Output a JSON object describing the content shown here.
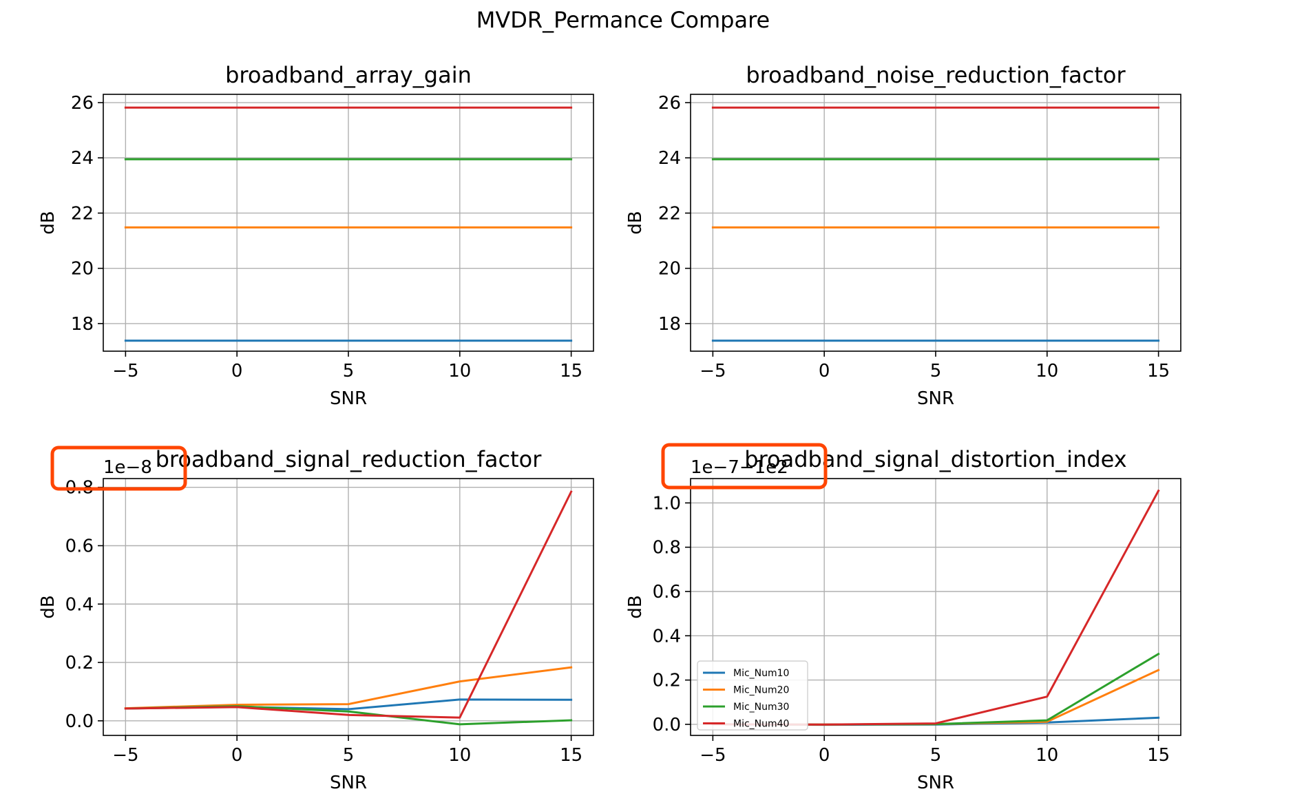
{
  "figure": {
    "suptitle": "MVDR_Permance Compare"
  },
  "colors": {
    "Mic_Num10": "#1f77b4",
    "Mic_Num20": "#ff7f0e",
    "Mic_Num30": "#2ca02c",
    "Mic_Num40": "#d62728",
    "highlight": "#ff4500",
    "grid": "#b0b0b0"
  },
  "chart_data": [
    {
      "type": "line",
      "title": "broadband_array_gain",
      "xlabel": "SNR",
      "ylabel": "dB",
      "x": [
        -5,
        0,
        5,
        10,
        15
      ],
      "xlim": [
        -6,
        16
      ],
      "ylim": [
        17,
        26.3
      ],
      "xticks": [
        -5,
        0,
        5,
        10,
        15
      ],
      "xtick_labels": [
        "−5",
        "0",
        "5",
        "10",
        "15"
      ],
      "yticks": [
        18,
        20,
        22,
        24,
        26
      ],
      "ytick_labels": [
        "18",
        "20",
        "22",
        "24",
        "26"
      ],
      "offset_text": "",
      "grid": true,
      "legend": null,
      "series": [
        {
          "key": "Mic_Num10",
          "values": [
            17.38,
            17.38,
            17.38,
            17.38,
            17.38
          ]
        },
        {
          "key": "Mic_Num20",
          "values": [
            21.48,
            21.48,
            21.48,
            21.48,
            21.48
          ]
        },
        {
          "key": "Mic_Num30",
          "values": [
            23.95,
            23.95,
            23.95,
            23.95,
            23.95
          ]
        },
        {
          "key": "Mic_Num40",
          "values": [
            25.82,
            25.82,
            25.82,
            25.82,
            25.82
          ]
        }
      ]
    },
    {
      "type": "line",
      "title": "broadband_noise_reduction_factor",
      "xlabel": "SNR",
      "ylabel": "dB",
      "x": [
        -5,
        0,
        5,
        10,
        15
      ],
      "xlim": [
        -6,
        16
      ],
      "ylim": [
        17,
        26.3
      ],
      "xticks": [
        -5,
        0,
        5,
        10,
        15
      ],
      "xtick_labels": [
        "−5",
        "0",
        "5",
        "10",
        "15"
      ],
      "yticks": [
        18,
        20,
        22,
        24,
        26
      ],
      "ytick_labels": [
        "18",
        "20",
        "22",
        "24",
        "26"
      ],
      "offset_text": "",
      "grid": true,
      "legend": null,
      "series": [
        {
          "key": "Mic_Num10",
          "values": [
            17.38,
            17.38,
            17.38,
            17.38,
            17.38
          ]
        },
        {
          "key": "Mic_Num20",
          "values": [
            21.48,
            21.48,
            21.48,
            21.48,
            21.48
          ]
        },
        {
          "key": "Mic_Num30",
          "values": [
            23.95,
            23.95,
            23.95,
            23.95,
            23.95
          ]
        },
        {
          "key": "Mic_Num40",
          "values": [
            25.82,
            25.82,
            25.82,
            25.82,
            25.82
          ]
        }
      ]
    },
    {
      "type": "line",
      "title": "broadband_signal_reduction_factor",
      "xlabel": "SNR",
      "ylabel": "dB",
      "x": [
        -5,
        0,
        5,
        10,
        15
      ],
      "xlim": [
        -6,
        16
      ],
      "ylim": [
        -0.05,
        0.83
      ],
      "xticks": [
        -5,
        0,
        5,
        10,
        15
      ],
      "xtick_labels": [
        "−5",
        "0",
        "5",
        "10",
        "15"
      ],
      "yticks": [
        0.0,
        0.2,
        0.4,
        0.6,
        0.8
      ],
      "ytick_labels": [
        "0.0",
        "0.2",
        "0.4",
        "0.6",
        "0.8"
      ],
      "offset_text": "1e−8",
      "grid": true,
      "legend": null,
      "series": [
        {
          "key": "Mic_Num10",
          "values": [
            0.042,
            0.048,
            0.04,
            0.073,
            0.072
          ]
        },
        {
          "key": "Mic_Num20",
          "values": [
            0.043,
            0.055,
            0.057,
            0.135,
            0.183
          ]
        },
        {
          "key": "Mic_Num30",
          "values": [
            0.042,
            0.05,
            0.032,
            -0.012,
            0.002
          ]
        },
        {
          "key": "Mic_Num40",
          "values": [
            0.042,
            0.047,
            0.02,
            0.011,
            0.785
          ]
        }
      ]
    },
    {
      "type": "line",
      "title": "broadband_signal_distortion_index",
      "xlabel": "SNR",
      "ylabel": "dB",
      "x": [
        -5,
        0,
        5,
        10,
        15
      ],
      "xlim": [
        -6,
        16
      ],
      "ylim": [
        -0.05,
        1.11
      ],
      "xticks": [
        -5,
        0,
        5,
        10,
        15
      ],
      "xtick_labels": [
        "−5",
        "0",
        "5",
        "10",
        "15"
      ],
      "yticks": [
        0.0,
        0.2,
        0.4,
        0.6,
        0.8,
        1.0
      ],
      "ytick_labels": [
        "0.0",
        "0.2",
        "0.4",
        "0.6",
        "0.8",
        "1.0"
      ],
      "offset_text": "1e−7−1e2",
      "grid": true,
      "legend": {
        "placement": "lower-left",
        "entries": [
          "Mic_Num10",
          "Mic_Num20",
          "Mic_Num30",
          "Mic_Num40"
        ]
      },
      "series": [
        {
          "key": "Mic_Num10",
          "values": [
            0.0,
            -0.002,
            -0.001,
            0.008,
            0.03
          ]
        },
        {
          "key": "Mic_Num20",
          "values": [
            0.0,
            -0.001,
            0.001,
            0.012,
            0.245
          ]
        },
        {
          "key": "Mic_Num30",
          "values": [
            0.0,
            -0.001,
            0.001,
            0.018,
            0.318
          ]
        },
        {
          "key": "Mic_Num40",
          "values": [
            0.0,
            -0.001,
            0.004,
            0.125,
            1.055
          ]
        }
      ]
    }
  ]
}
